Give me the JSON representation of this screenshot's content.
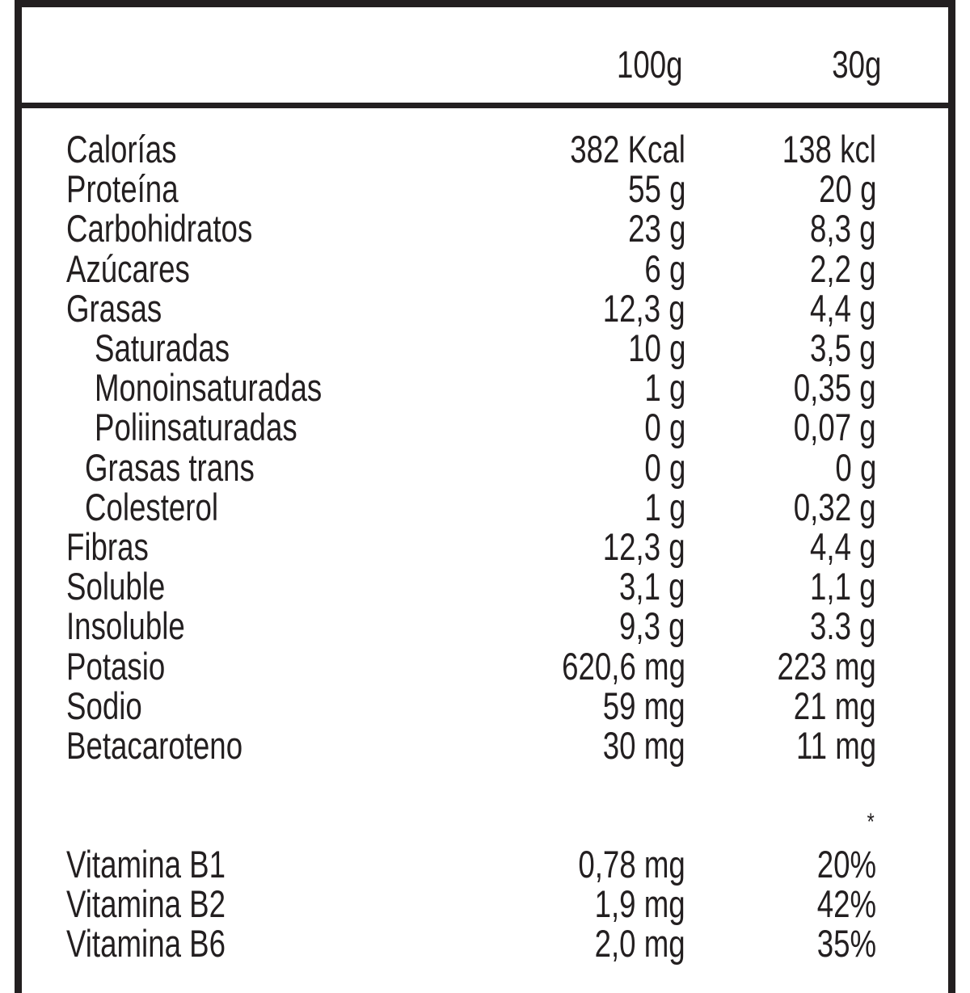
{
  "table": {
    "columns": [
      "100g",
      "30g"
    ],
    "rows": [
      [
        "Calorías",
        "382 Kcal",
        "138 kcl"
      ],
      [
        "Proteína",
        "55 g",
        "20 g"
      ],
      [
        "Carbohidratos",
        "23 g",
        "8,3 g"
      ],
      [
        "Azúcares",
        "6 g",
        "2,2 g"
      ],
      [
        "Grasas",
        "12,3 g",
        "4,4 g"
      ],
      [
        "Saturadas",
        "10 g",
        "3,5 g"
      ],
      [
        "Monoinsaturadas",
        "1 g",
        "0,35 g"
      ],
      [
        "Poliinsaturadas",
        "0 g",
        "0,07 g"
      ],
      [
        "Grasas trans",
        "0 g",
        "0 g"
      ],
      [
        "Colesterol",
        "1 g",
        "0,32 g"
      ],
      [
        "Fibras",
        "12,3 g",
        "4,4 g"
      ],
      [
        "Soluble",
        "3,1 g",
        "1,1 g"
      ],
      [
        "Insoluble",
        "9,3 g",
        "3.3 g"
      ],
      [
        "Potasio",
        "620,6 mg",
        "223 mg"
      ],
      [
        "Sodio",
        "59 mg",
        "21 mg"
      ],
      [
        "Betacaroteno",
        "30 mg",
        "11 mg"
      ]
    ],
    "footnote_marker": "*",
    "vitamins": [
      [
        "Vitamina B1",
        "0,78 mg",
        "20%"
      ],
      [
        "Vitamina B2",
        "1,9 mg",
        "42%"
      ],
      [
        "Vitamina B6",
        "2,0 mg",
        "35%"
      ]
    ]
  }
}
